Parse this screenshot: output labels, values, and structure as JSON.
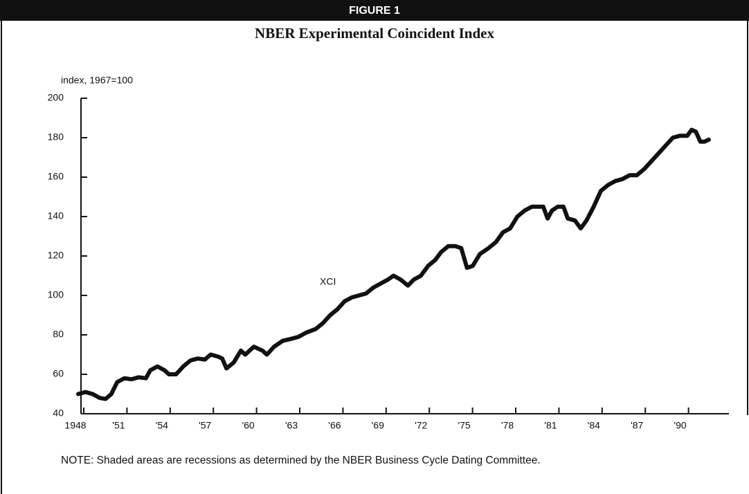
{
  "chart_data": {
    "type": "line",
    "header": "FIGURE 1",
    "title": "NBER Experimental Coincident Index",
    "y_label": "index, 1967=100",
    "note": "NOTE: Shaded areas are recessions as determined by the NBER Business Cycle Dating Committee.",
    "annotations": [
      {
        "text": "XCI"
      }
    ],
    "xlim": [
      1948,
      1993
    ],
    "ylim": [
      40,
      200
    ],
    "yticks": [
      40,
      60,
      80,
      100,
      120,
      140,
      160,
      180,
      200
    ],
    "xticks": [
      {
        "value": 1948,
        "label": "1948"
      },
      {
        "value": 1951,
        "label": "'51"
      },
      {
        "value": 1954,
        "label": "'54"
      },
      {
        "value": 1957,
        "label": "'57"
      },
      {
        "value": 1960,
        "label": "'60"
      },
      {
        "value": 1963,
        "label": "'63"
      },
      {
        "value": 1966,
        "label": "'66"
      },
      {
        "value": 1969,
        "label": "'69"
      },
      {
        "value": 1972,
        "label": "'72"
      },
      {
        "value": 1975,
        "label": "'75"
      },
      {
        "value": 1978,
        "label": "'78"
      },
      {
        "value": 1981,
        "label": "'81"
      },
      {
        "value": 1984,
        "label": "'84"
      },
      {
        "value": 1987,
        "label": "'87"
      },
      {
        "value": 1990,
        "label": "'90"
      }
    ],
    "color": "#111111",
    "x": [
      1948.0,
      1948.5,
      1949.0,
      1949.5,
      1949.9,
      1950.3,
      1950.7,
      1951.2,
      1951.7,
      1952.2,
      1952.7,
      1953.0,
      1953.5,
      1954.0,
      1954.3,
      1954.8,
      1955.3,
      1955.8,
      1956.3,
      1956.8,
      1957.2,
      1957.7,
      1958.0,
      1958.3,
      1958.8,
      1959.3,
      1959.6,
      1959.9,
      1960.2,
      1960.8,
      1961.1,
      1961.6,
      1962.2,
      1962.8,
      1963.3,
      1963.8,
      1964.5,
      1965.0,
      1965.5,
      1966.0,
      1966.5,
      1967.0,
      1967.5,
      1968.0,
      1968.5,
      1969.0,
      1969.5,
      1969.9,
      1970.4,
      1970.9,
      1971.3,
      1971.8,
      1972.3,
      1972.8,
      1973.2,
      1973.7,
      1974.2,
      1974.6,
      1975.0,
      1975.4,
      1975.9,
      1976.5,
      1977.0,
      1977.5,
      1978.0,
      1978.5,
      1979.0,
      1979.5,
      1980.0,
      1980.3,
      1980.6,
      1980.9,
      1981.3,
      1981.7,
      1982.0,
      1982.5,
      1982.9,
      1983.3,
      1983.8,
      1984.3,
      1984.8,
      1985.3,
      1985.8,
      1986.3,
      1986.8,
      1987.3,
      1987.8,
      1988.3,
      1988.8,
      1989.3,
      1989.8,
      1990.3,
      1990.6,
      1990.9,
      1991.2,
      1991.5,
      1991.8
    ],
    "values": [
      50,
      51,
      50,
      48,
      47.5,
      50,
      56,
      58,
      57.5,
      58.5,
      58,
      62,
      64,
      62,
      60,
      60,
      64,
      67,
      68,
      67.5,
      70,
      69,
      68,
      63,
      66,
      72,
      70,
      72,
      74,
      72,
      70,
      74,
      77,
      78,
      79,
      81,
      83,
      86,
      90,
      93,
      97,
      99,
      100,
      101,
      104,
      106,
      108,
      110,
      108,
      105,
      108,
      110,
      115,
      118,
      122,
      125,
      125,
      124,
      114,
      115,
      121,
      124,
      127,
      132,
      134,
      140,
      143,
      145,
      145,
      145,
      139,
      143,
      145,
      145,
      139,
      138,
      134,
      138,
      145,
      153,
      156,
      158,
      159,
      161,
      161,
      164,
      168,
      172,
      176,
      180,
      181,
      181,
      184,
      183,
      178,
      178,
      179
    ]
  }
}
